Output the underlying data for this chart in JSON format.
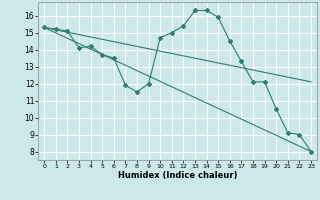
{
  "title": "",
  "xlabel": "Humidex (Indice chaleur)",
  "ylabel": "",
  "background_color": "#cce8e8",
  "grid_color": "#ffffff",
  "line_color": "#2e7d72",
  "xlim": [
    -0.5,
    23.5
  ],
  "ylim": [
    7.5,
    16.8
  ],
  "xticks": [
    0,
    1,
    2,
    3,
    4,
    5,
    6,
    7,
    8,
    9,
    10,
    11,
    12,
    13,
    14,
    15,
    16,
    17,
    18,
    19,
    20,
    21,
    22,
    23
  ],
  "yticks": [
    8,
    9,
    10,
    11,
    12,
    13,
    14,
    15,
    16
  ],
  "series": [
    {
      "x": [
        0,
        1,
        2,
        3,
        4,
        5,
        6,
        7,
        8,
        9,
        10,
        11,
        12,
        13,
        14,
        15,
        16,
        17,
        18,
        19,
        20,
        21,
        22,
        23
      ],
      "y": [
        15.3,
        15.2,
        15.1,
        14.1,
        14.2,
        13.7,
        13.5,
        11.9,
        11.5,
        12.0,
        14.7,
        15.0,
        15.4,
        16.3,
        16.3,
        15.9,
        14.5,
        13.3,
        12.1,
        12.1,
        10.5,
        9.1,
        9.0,
        8.0
      ],
      "marker": true
    },
    {
      "x": [
        0,
        23
      ],
      "y": [
        15.3,
        12.1
      ],
      "marker": false
    },
    {
      "x": [
        0,
        23
      ],
      "y": [
        15.3,
        8.0
      ],
      "marker": false
    }
  ]
}
